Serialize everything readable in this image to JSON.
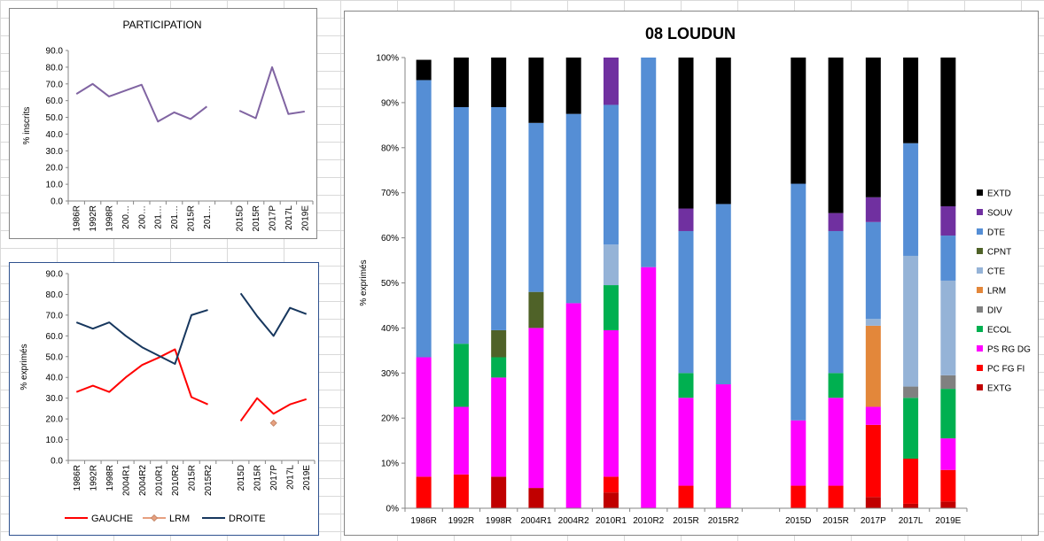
{
  "chart_data": [
    {
      "type": "line",
      "title": "PARTICIPATION",
      "ylabel": "% inscrits",
      "ylim": [
        0,
        90
      ],
      "yticks": [
        "0.0",
        "10.0",
        "20.0",
        "30.0",
        "40.0",
        "50.0",
        "60.0",
        "70.0",
        "80.0",
        "90.0"
      ],
      "categories": [
        "1986R",
        "1992R",
        "1998R",
        "200…",
        "200…",
        "201…",
        "201…",
        "2015R",
        "201…",
        "",
        "2015D",
        "2015R",
        "2017P",
        "2017L",
        "2019E"
      ],
      "series": [
        {
          "name": "PARTICIPATION",
          "color": "#8064a2",
          "values": [
            64,
            70,
            62.5,
            66,
            69.5,
            47.5,
            53,
            49,
            56.5,
            null,
            54,
            49.5,
            80,
            52,
            53.5
          ]
        }
      ]
    },
    {
      "type": "line",
      "ylabel": "% exprimés",
      "ylim": [
        0,
        90
      ],
      "yticks": [
        "0.0",
        "10.0",
        "20.0",
        "30.0",
        "40.0",
        "50.0",
        "60.0",
        "70.0",
        "80.0",
        "90.0"
      ],
      "categories": [
        "1986R",
        "1992R",
        "1998R",
        "2004R1",
        "2004R2",
        "2010R1",
        "2010R2",
        "2015R",
        "2015R2",
        "",
        "2015D",
        "2015R",
        "2017P",
        "2017L",
        "2019E"
      ],
      "series": [
        {
          "name": "GAUCHE",
          "color": "#ff0000",
          "values": [
            33,
            36,
            33,
            40,
            46,
            49.5,
            53.5,
            30.5,
            27,
            null,
            19,
            30,
            22.5,
            27,
            29.5
          ]
        },
        {
          "name": "LRM",
          "color": "#e6a080",
          "values": [
            null,
            null,
            null,
            null,
            null,
            null,
            null,
            null,
            null,
            null,
            null,
            null,
            18,
            null,
            null
          ]
        },
        {
          "name": "DROITE",
          "color": "#17375e",
          "values": [
            66.5,
            63.5,
            66.5,
            60,
            54.5,
            50.5,
            46.5,
            70,
            72.5,
            null,
            80.5,
            69.5,
            60,
            73.5,
            70.5
          ]
        }
      ],
      "legend": [
        "GAUCHE",
        "LRM",
        "DROITE"
      ]
    },
    {
      "type": "stacked-bar",
      "title": "08 LOUDUN",
      "ylabel": "% exprimés",
      "yticks": [
        "0%",
        "10%",
        "20%",
        "30%",
        "40%",
        "50%",
        "60%",
        "70%",
        "80%",
        "90%",
        "100%"
      ],
      "categories": [
        "1986R",
        "1992R",
        "1998R",
        "2004R1",
        "2004R2",
        "2010R1",
        "2010R2",
        "2015R",
        "2015R2",
        "",
        "2015D",
        "2015R",
        "2017P",
        "2017L",
        "2019E"
      ],
      "series": [
        {
          "name": "EXTG",
          "color": "#c00000",
          "values": [
            0,
            0,
            7,
            4.5,
            0,
            3.5,
            0,
            0,
            0,
            0,
            0,
            0,
            2.5,
            1,
            1.5
          ]
        },
        {
          "name": "PC FG FI",
          "color": "#ff0000",
          "values": [
            7,
            7.5,
            0,
            0,
            0,
            3.5,
            0,
            5,
            0,
            0,
            5,
            5,
            16,
            10,
            7
          ]
        },
        {
          "name": "PS RG DG",
          "color": "#ff00ff",
          "values": [
            26.5,
            15,
            22,
            35.5,
            45.5,
            32.5,
            53.5,
            19.5,
            27.5,
            0,
            14.5,
            19.5,
            4,
            0,
            7
          ]
        },
        {
          "name": "ECOL",
          "color": "#00b050",
          "values": [
            0,
            14,
            4.5,
            0,
            0,
            10,
            0,
            5.5,
            0,
            0,
            0,
            5.5,
            0,
            13.5,
            11
          ]
        },
        {
          "name": "DIV",
          "color": "#808080",
          "values": [
            0,
            0,
            0,
            0,
            0,
            0,
            0,
            0,
            0,
            0,
            0,
            0,
            0,
            2.5,
            3
          ]
        },
        {
          "name": "LRM",
          "color": "#e3873a",
          "values": [
            0,
            0,
            0,
            0,
            0,
            0,
            0,
            0,
            0,
            0,
            0,
            0,
            18,
            0,
            0
          ]
        },
        {
          "name": "CTE",
          "color": "#95b3d7",
          "values": [
            0,
            0,
            0,
            0,
            0,
            9,
            0,
            0,
            0,
            0,
            0,
            0,
            1.5,
            29,
            21
          ]
        },
        {
          "name": "CPNT",
          "color": "#4f6228",
          "values": [
            0,
            0,
            6,
            8,
            0,
            0,
            0,
            0,
            0,
            0,
            0,
            0,
            0,
            0,
            0
          ]
        },
        {
          "name": "DTE",
          "color": "#558ed5",
          "values": [
            61.5,
            52.5,
            49.5,
            37.5,
            42,
            31,
            46.5,
            31.5,
            40,
            0,
            52.5,
            31.5,
            21.5,
            25,
            10
          ]
        },
        {
          "name": "SOUV",
          "color": "#7030a0",
          "values": [
            0,
            0,
            0,
            0,
            0,
            10.5,
            0,
            5,
            0,
            0,
            0,
            4,
            5.5,
            0,
            6.5
          ]
        },
        {
          "name": "EXTD",
          "color": "#000000",
          "values": [
            4.5,
            11,
            11,
            14.5,
            12.5,
            0,
            0,
            33.5,
            32.5,
            0,
            28,
            34.5,
            31,
            19,
            33
          ]
        }
      ],
      "legend": [
        "EXTD",
        "SOUV",
        "DTE",
        "CPNT",
        "CTE",
        "LRM",
        "DIV",
        "ECOL",
        "PS RG DG",
        "PC FG FI",
        "EXTG"
      ]
    }
  ]
}
